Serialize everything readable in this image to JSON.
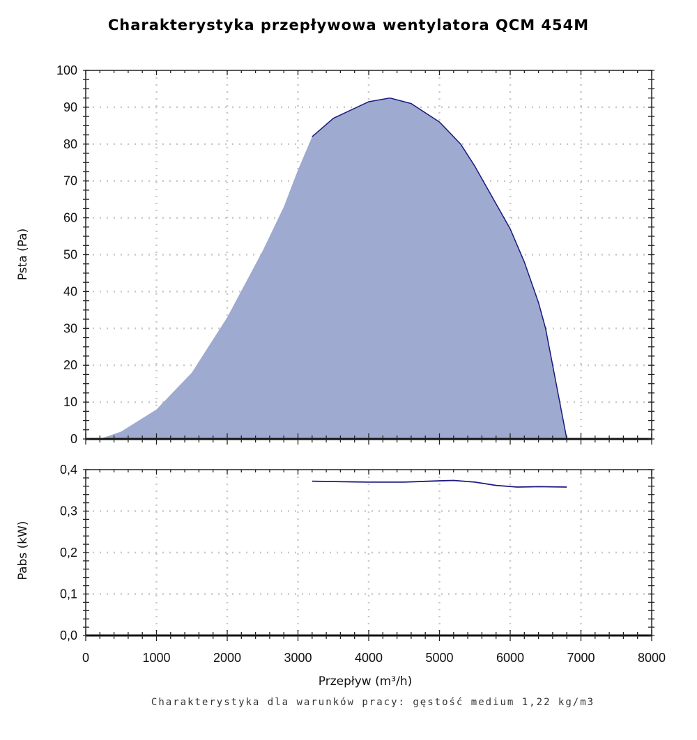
{
  "title": "Charakterystyka przepływowa wentylatora QCM 454M",
  "note": "Charakterystyka dla warunków pracy: gęstość medium 1,22 kg/m3",
  "colors": {
    "fill": "#9eaacf",
    "line": "#1a1a80",
    "grid": "#c8c8c8"
  },
  "chart_data": [
    {
      "type": "area",
      "title": "Charakterystyka przepływowa wentylatora QCM 454M",
      "xlabel": "Przepływ (m³/h)",
      "ylabel": "Psta (Pa)",
      "xlim": [
        0,
        8000
      ],
      "ylim": [
        0,
        100
      ],
      "xticks": [
        "0",
        "1000",
        "2000",
        "3000",
        "4000",
        "5000",
        "6000",
        "7000",
        "8000"
      ],
      "yticks": [
        "0",
        "10",
        "20",
        "30",
        "40",
        "50",
        "60",
        "70",
        "80",
        "90",
        "100"
      ],
      "grid": true,
      "line_from_x": 3200,
      "x": [
        200,
        500,
        1000,
        1500,
        2000,
        2500,
        2800,
        3000,
        3200,
        3500,
        4000,
        4300,
        4600,
        5000,
        5300,
        5500,
        6000,
        6200,
        6400,
        6500,
        6600,
        6700,
        6800
      ],
      "y": [
        0,
        2,
        8,
        18,
        33,
        51,
        63,
        73,
        82,
        87,
        91.5,
        92.5,
        91,
        86,
        80,
        74,
        57,
        48,
        37,
        30,
        20,
        10,
        0
      ]
    },
    {
      "type": "line",
      "xlabel": "Przepływ (m³/h)",
      "ylabel": "Pabs (kW)",
      "xlim": [
        0,
        8000
      ],
      "ylim": [
        0,
        0.4
      ],
      "xticks": [
        "0",
        "1000",
        "2000",
        "3000",
        "4000",
        "5000",
        "6000",
        "7000",
        "8000"
      ],
      "yticks": [
        "0,0",
        "0,1",
        "0,2",
        "0,3",
        "0,4"
      ],
      "grid": true,
      "x": [
        3200,
        3600,
        4000,
        4500,
        5000,
        5200,
        5500,
        5800,
        6100,
        6400,
        6800
      ],
      "y": [
        0.372,
        0.371,
        0.37,
        0.37,
        0.373,
        0.374,
        0.37,
        0.362,
        0.358,
        0.359,
        0.358
      ]
    }
  ]
}
